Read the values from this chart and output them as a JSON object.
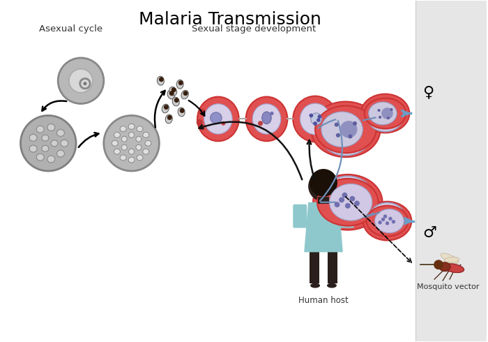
{
  "title": "Malaria Transmission",
  "title_fontsize": 18,
  "title_fontweight": "normal",
  "bg_color": "#ffffff",
  "right_panel_color": "#e6e6e6",
  "text_asexual": "Asexual cycle",
  "text_sexual": "Sexual stage development",
  "text_human": "Human host",
  "text_mosquito": "Mosquito vector",
  "male_symbol": "♂",
  "female_symbol": "♀",
  "arrow_color_blue": "#6b9ec8",
  "cell_red": "#e05050",
  "cell_red_edge": "#cc3333",
  "cell_purple_light": "#c8c0dc",
  "cell_gray_fill": "#b8b8b8",
  "cell_gray_edge": "#888888",
  "human_body_color": "#8ec8cc",
  "human_skin_color": "#2a1f1a",
  "mosquito_body": "#c84040"
}
